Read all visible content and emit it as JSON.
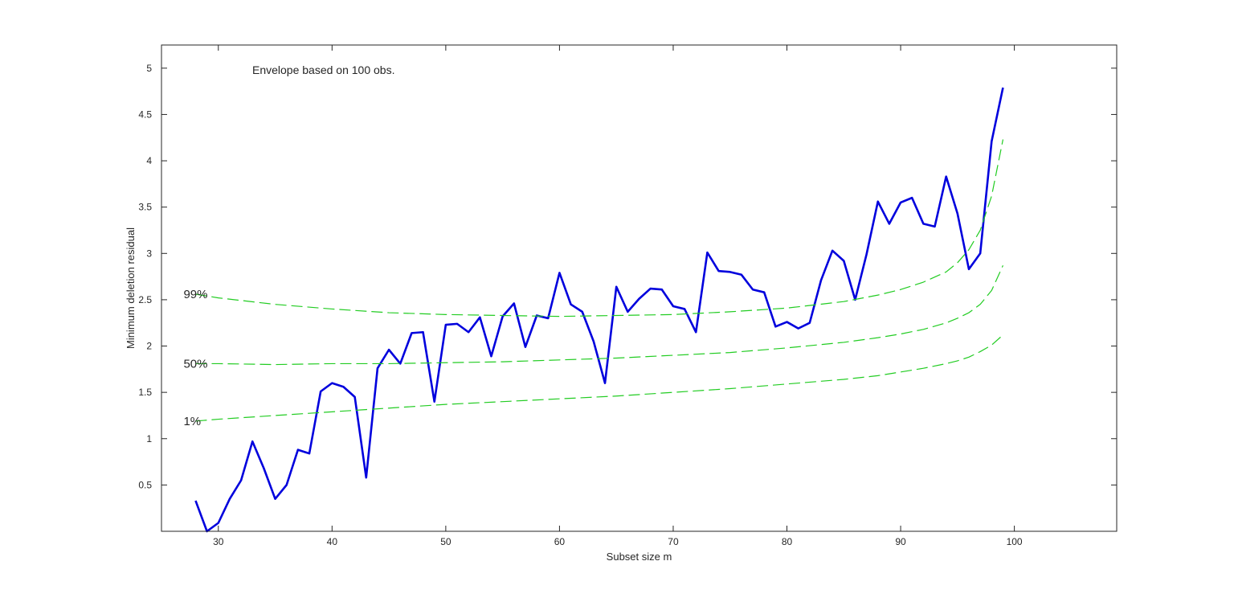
{
  "chart_data": {
    "type": "line",
    "annotation": "Envelope based on 100 obs.",
    "xlabel": "Subset size m",
    "ylabel": "Minimum deletion residual",
    "xlim": [
      25,
      109
    ],
    "ylim": [
      0,
      5.25
    ],
    "xticks": [
      30,
      40,
      50,
      60,
      70,
      80,
      90,
      100
    ],
    "yticks": [
      0.5,
      1,
      1.5,
      2,
      2.5,
      3,
      3.5,
      4,
      4.5,
      5
    ],
    "grid": false,
    "colors": {
      "main": "#0000dd",
      "envelope": "#22cc22"
    },
    "series": [
      {
        "style": "solid",
        "x": [
          28,
          29,
          30,
          31,
          32,
          33,
          34,
          35,
          36,
          37,
          38,
          39,
          40,
          41,
          42,
          43,
          44,
          45,
          46,
          47,
          48,
          49,
          50,
          51,
          52,
          53,
          54,
          55,
          56,
          57,
          58,
          59,
          60,
          61,
          62,
          63,
          64,
          65,
          66,
          67,
          68,
          69,
          70,
          71,
          72,
          73,
          74,
          75,
          76,
          77,
          78,
          79,
          80,
          81,
          82,
          83,
          84,
          85,
          86,
          87,
          88,
          89,
          90,
          91,
          92,
          93,
          94,
          95,
          96,
          97,
          98,
          99
        ],
        "values": [
          0.33,
          0.0,
          0.09,
          0.35,
          0.55,
          0.97,
          0.68,
          0.35,
          0.5,
          0.88,
          0.84,
          1.51,
          1.6,
          1.56,
          1.45,
          0.58,
          1.76,
          1.96,
          1.81,
          2.14,
          2.15,
          1.4,
          2.23,
          2.24,
          2.15,
          2.31,
          1.89,
          2.32,
          2.46,
          1.99,
          2.33,
          2.3,
          2.79,
          2.45,
          2.37,
          2.05,
          1.6,
          2.64,
          2.37,
          2.51,
          2.62,
          2.61,
          2.43,
          2.4,
          2.15,
          3.01,
          2.81,
          2.8,
          2.77,
          2.61,
          2.58,
          2.21,
          2.26,
          2.19,
          2.25,
          2.71,
          3.03,
          2.92,
          2.5,
          2.99,
          3.56,
          3.32,
          3.55,
          3.6,
          3.32,
          3.29,
          3.83,
          3.43,
          2.83,
          3.0,
          4.21,
          4.79
        ]
      },
      {
        "name": "99%",
        "style": "dashed",
        "x": [
          28,
          30,
          35,
          40,
          45,
          50,
          55,
          60,
          65,
          70,
          75,
          80,
          85,
          88,
          90,
          92,
          94,
          95,
          96,
          97,
          98,
          99
        ],
        "values": [
          2.56,
          2.52,
          2.45,
          2.4,
          2.36,
          2.34,
          2.33,
          2.32,
          2.33,
          2.34,
          2.37,
          2.41,
          2.48,
          2.55,
          2.61,
          2.69,
          2.8,
          2.9,
          3.04,
          3.25,
          3.62,
          4.23
        ]
      },
      {
        "name": "50%",
        "style": "dashed",
        "x": [
          28,
          30,
          35,
          40,
          45,
          50,
          55,
          60,
          65,
          70,
          75,
          80,
          85,
          88,
          90,
          92,
          94,
          95,
          96,
          97,
          98,
          99
        ],
        "values": [
          1.81,
          1.81,
          1.8,
          1.81,
          1.81,
          1.82,
          1.83,
          1.85,
          1.87,
          1.9,
          1.93,
          1.98,
          2.04,
          2.09,
          2.13,
          2.18,
          2.25,
          2.3,
          2.36,
          2.45,
          2.6,
          2.87
        ]
      },
      {
        "name": "1%",
        "style": "dashed",
        "x": [
          28,
          30,
          35,
          40,
          45,
          50,
          55,
          60,
          65,
          70,
          75,
          80,
          85,
          88,
          90,
          92,
          94,
          95,
          96,
          97,
          98,
          99
        ],
        "values": [
          1.19,
          1.21,
          1.25,
          1.29,
          1.33,
          1.37,
          1.4,
          1.43,
          1.46,
          1.5,
          1.54,
          1.59,
          1.64,
          1.68,
          1.72,
          1.76,
          1.81,
          1.84,
          1.88,
          1.94,
          2.01,
          2.12
        ]
      }
    ]
  }
}
